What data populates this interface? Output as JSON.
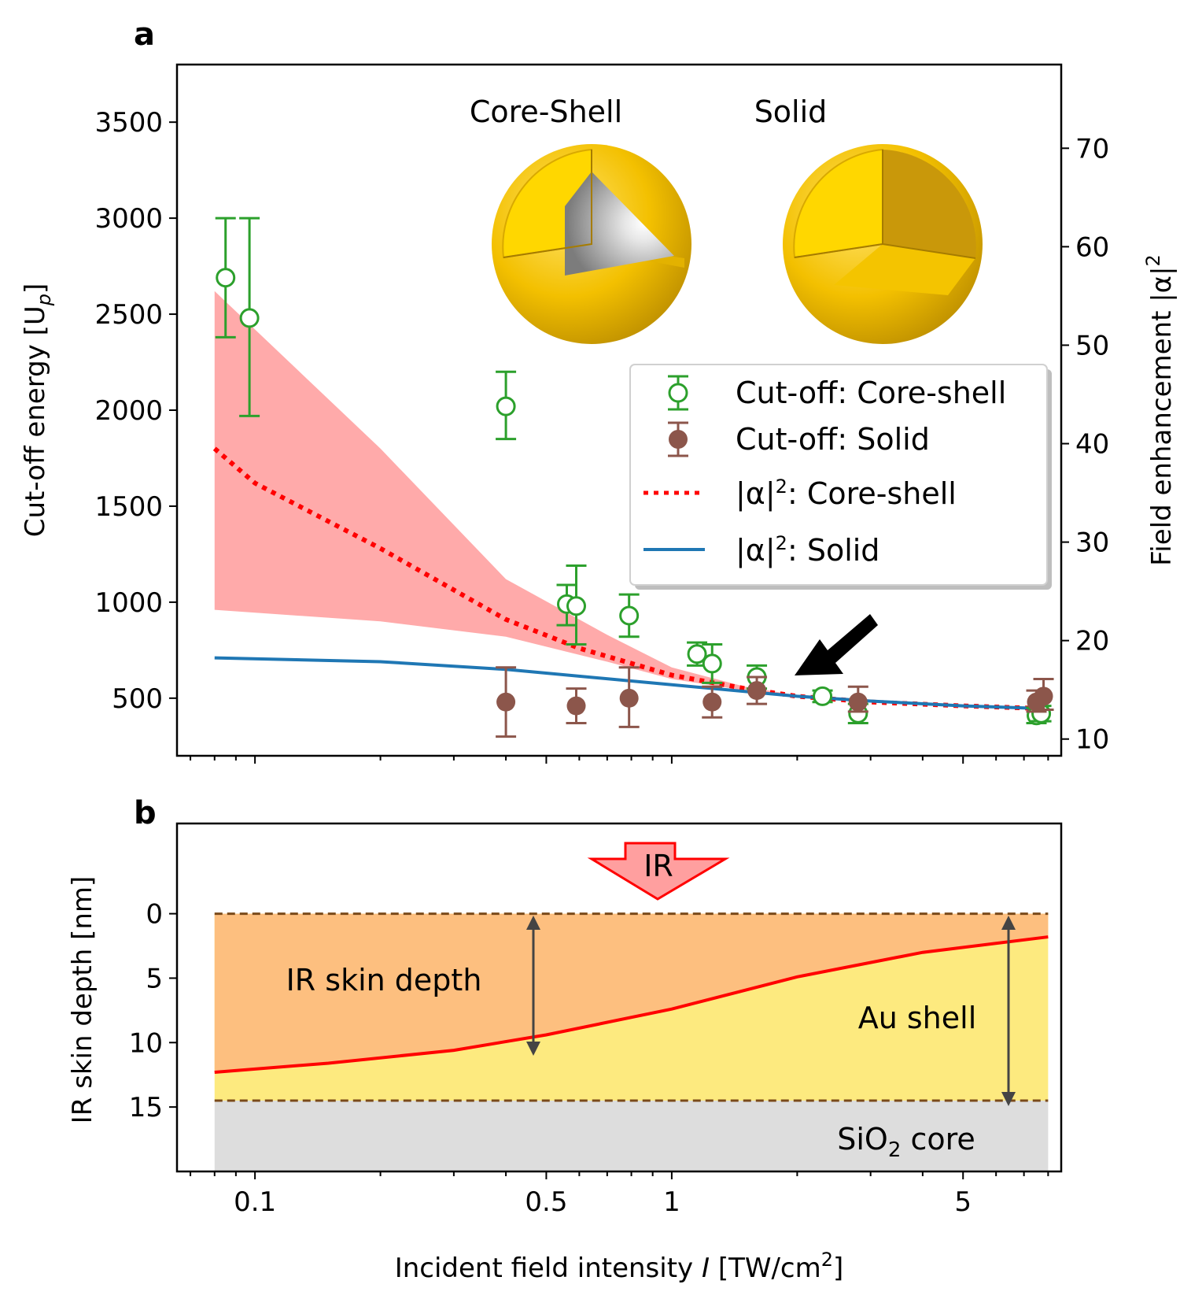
{
  "chart_data": [
    {
      "panel": "a",
      "type": "scatter",
      "xscale": "log",
      "xlim": [
        0.065,
        8.6
      ],
      "ylim": [
        200,
        3800
      ],
      "y2lim": [
        8.3,
        78.5
      ],
      "ylabel": "Cut-off energy [U",
      "ylabel_sub": "p",
      "ylabel_end": "]",
      "y2label": "Field enhancement |α|",
      "y2label_sup": "2",
      "yticks": [
        500,
        1000,
        1500,
        2000,
        2500,
        3000,
        3500
      ],
      "y2ticks": [
        10,
        20,
        30,
        40,
        50,
        60,
        70
      ],
      "inset_labels": [
        "Core-Shell",
        "Solid"
      ],
      "legend": {
        "position": "center-right",
        "items": [
          {
            "label": "Cut-off: Core-shell"
          },
          {
            "label": "Cut-off: Solid"
          },
          {
            "label_pre": "|α|",
            "label_sup": "2",
            "label_post": ": Core-shell"
          },
          {
            "label_pre": "|α|",
            "label_sup": "2",
            "label_post": ": Solid"
          }
        ]
      },
      "series": [
        {
          "name": "Cut-off: Core-shell",
          "kind": "errorbar",
          "marker": "open-circle",
          "color": "#2ca02c",
          "points": [
            {
              "x": 0.085,
              "y": 2690,
              "lo": 2380,
              "hi": 3000
            },
            {
              "x": 0.097,
              "y": 2480,
              "lo": 1970,
              "hi": 3000
            },
            {
              "x": 0.4,
              "y": 2020,
              "lo": 1850,
              "hi": 2200
            },
            {
              "x": 0.56,
              "y": 990,
              "lo": 880,
              "hi": 1090
            },
            {
              "x": 0.59,
              "y": 980,
              "lo": 780,
              "hi": 1190
            },
            {
              "x": 0.79,
              "y": 930,
              "lo": 820,
              "hi": 1040
            },
            {
              "x": 1.15,
              "y": 730,
              "lo": 670,
              "hi": 790
            },
            {
              "x": 1.25,
              "y": 680,
              "lo": 580,
              "hi": 780
            },
            {
              "x": 1.6,
              "y": 610,
              "lo": 550,
              "hi": 670
            },
            {
              "x": 2.3,
              "y": 510,
              "lo": 480,
              "hi": 540
            },
            {
              "x": 2.8,
              "y": 420,
              "lo": 370,
              "hi": 470
            },
            {
              "x": 7.5,
              "y": 410,
              "lo": 370,
              "hi": 450
            },
            {
              "x": 7.7,
              "y": 420,
              "lo": 380,
              "hi": 460
            }
          ]
        },
        {
          "name": "Cut-off: Solid",
          "kind": "errorbar",
          "marker": "filled-circle",
          "color": "#8c564b",
          "points": [
            {
              "x": 0.4,
              "y": 480,
              "lo": 300,
              "hi": 660
            },
            {
              "x": 0.59,
              "y": 460,
              "lo": 370,
              "hi": 550
            },
            {
              "x": 0.79,
              "y": 500,
              "lo": 350,
              "hi": 660
            },
            {
              "x": 1.25,
              "y": 480,
              "lo": 400,
              "hi": 560
            },
            {
              "x": 1.6,
              "y": 540,
              "lo": 470,
              "hi": 610
            },
            {
              "x": 2.8,
              "y": 480,
              "lo": 430,
              "hi": 560
            },
            {
              "x": 7.5,
              "y": 480,
              "lo": 430,
              "hi": 540
            },
            {
              "x": 7.8,
              "y": 510,
              "lo": 440,
              "hi": 600
            }
          ]
        },
        {
          "name": "|α|²: Core-shell",
          "kind": "line",
          "style": "dotted",
          "color": "#ff0000",
          "x": [
            0.08,
            0.1,
            0.2,
            0.4,
            0.6,
            1.0,
            1.5,
            2.0,
            3.0,
            5.0,
            8.0
          ],
          "y": [
            1800,
            1620,
            1280,
            910,
            760,
            620,
            550,
            510,
            480,
            460,
            445
          ]
        },
        {
          "name": "|α|²: Solid",
          "kind": "line",
          "style": "solid",
          "color": "#1f77b4",
          "x": [
            0.08,
            0.2,
            0.4,
            1.0,
            2.0,
            3.0,
            5.0,
            8.0
          ],
          "y": [
            710,
            690,
            650,
            570,
            510,
            485,
            460,
            445
          ]
        },
        {
          "name": "Core-shell band",
          "kind": "band",
          "color": "#ffaaaa",
          "x": [
            0.08,
            0.2,
            0.4,
            0.7,
            1.0,
            1.5,
            2.0,
            3.0,
            5.0,
            8.0
          ],
          "lo": [
            960,
            900,
            820,
            690,
            600,
            540,
            510,
            480,
            460,
            445
          ],
          "hi": [
            2620,
            1800,
            1120,
            830,
            660,
            560,
            515,
            485,
            462,
            447
          ]
        }
      ]
    },
    {
      "panel": "b",
      "type": "line",
      "xscale": "log",
      "xlim": [
        0.065,
        8.6
      ],
      "ylim": [
        20,
        -7
      ],
      "ylabel": "IR skin depth [nm]",
      "yticks": [
        0,
        5,
        10,
        15
      ],
      "xticks": [
        0.1,
        0.5,
        1,
        5
      ],
      "xtick_labels": [
        "0.1",
        "0.5",
        "1",
        "5"
      ],
      "xlabel_pre": "Incident field intensity ",
      "xlabel_var": "I",
      "xlabel_mid": " [TW/cm",
      "xlabel_sup": "2",
      "xlabel_end": "]",
      "shell_top": 0,
      "shell_bottom": 14.5,
      "core_bottom": 20,
      "skin_depth": {
        "x": [
          0.08,
          0.15,
          0.3,
          0.5,
          1.0,
          2.0,
          4.0,
          8.0
        ],
        "y": [
          12.3,
          11.6,
          10.6,
          9.4,
          7.4,
          4.9,
          3.0,
          1.8
        ]
      },
      "labels": {
        "ir_arrow": "IR",
        "skin": "IR skin depth",
        "shell": "Au shell",
        "core_pre": "SiO",
        "core_sub": "2",
        "core_post": " core"
      },
      "colors": {
        "skin_fill": "#fdbf7f",
        "shell_fill": "#fdea7f",
        "core_fill": "#dddddd",
        "curve": "#ff0000",
        "dash": "#7a4a1a"
      }
    }
  ]
}
